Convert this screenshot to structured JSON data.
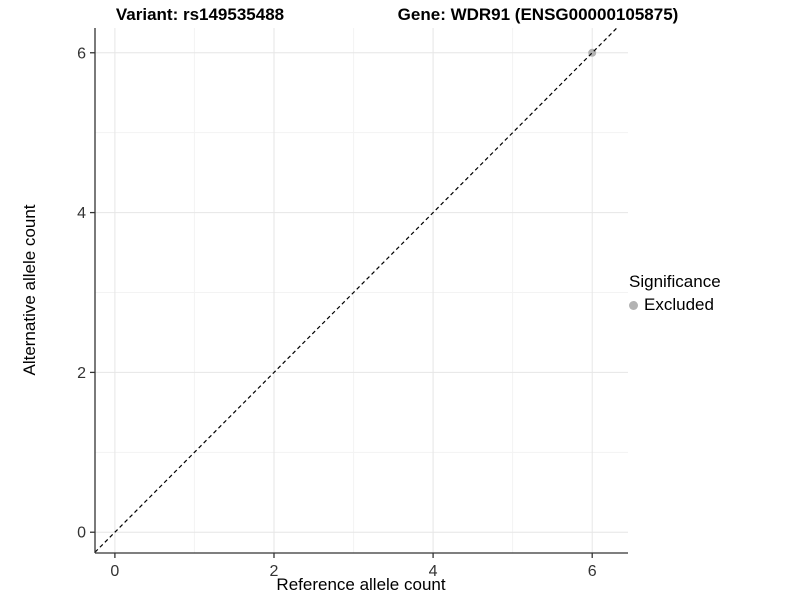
{
  "header": {
    "title_left": "Variant: rs149535488",
    "title_right": "Gene: WDR91 (ENSG00000105875)"
  },
  "chart_data": {
    "type": "scatter",
    "xlabel": "Reference allele count",
    "ylabel": "Alternative allele count",
    "xlim": [
      -0.25,
      6.45
    ],
    "ylim": [
      -0.26,
      6.31
    ],
    "x_major_ticks": [
      0,
      2,
      4,
      6
    ],
    "x_minor_ticks": [
      1,
      3,
      5
    ],
    "y_major_ticks": [
      0,
      2,
      4,
      6
    ],
    "y_minor_ticks": [
      1,
      3,
      5
    ],
    "grid": true,
    "points": [
      {
        "x": 6,
        "y": 6,
        "series": "Excluded"
      }
    ],
    "point_radius": 4,
    "identity_line": {
      "slope": 1,
      "intercept": 0,
      "style": "dashed",
      "color": "#000000"
    },
    "series_colors": {
      "Excluded": "#b3b3b3"
    }
  },
  "legend": {
    "title": "Significance",
    "position": "right",
    "items": [
      {
        "label": "Excluded",
        "color": "#b3b3b3"
      }
    ]
  },
  "colors": {
    "axis": "#333333",
    "tick_text": "#333333",
    "grid_major": "#e6e6e6",
    "grid_minor": "#f3f3f3",
    "title_text": "#000000"
  }
}
